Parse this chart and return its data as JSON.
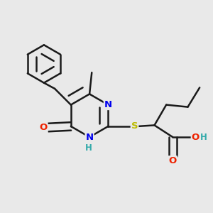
{
  "bg_color": "#e9e9e9",
  "bond_color": "#1a1a1a",
  "bond_width": 1.8,
  "dbo": 0.018,
  "atom_colors": {
    "N": "#0000ee",
    "O": "#ee2200",
    "S": "#bbbb00",
    "H": "#33aaaa",
    "C": "#1a1a1a"
  },
  "font_size": 9.5,
  "font_size_H": 8.5
}
